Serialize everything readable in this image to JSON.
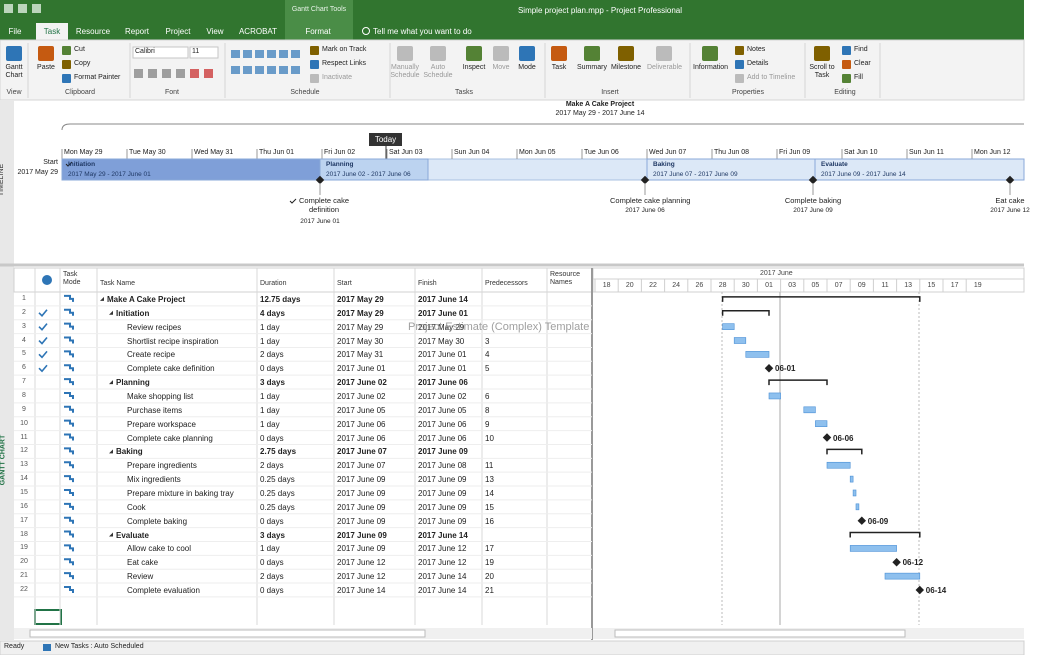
{
  "title_bar": {
    "context_tab": "Gantt Chart Tools",
    "title": "Simple project plan.mpp - Project Professional"
  },
  "tabs": [
    "File",
    "Task",
    "Resource",
    "Report",
    "Project",
    "View",
    "ACROBAT",
    "Format"
  ],
  "tell_me": "Tell me what you want to do",
  "ribbon": [
    {
      "group": "View",
      "buttons": [
        "Gantt Chart"
      ]
    },
    {
      "group": "Clipboard",
      "buttons": [
        "Paste",
        "Cut",
        "Copy",
        "Format Painter"
      ]
    },
    {
      "group": "Font",
      "buttons": [
        "Calibri",
        "11"
      ]
    },
    {
      "group": "Schedule",
      "buttons": [
        "Mark on Track",
        "Respect Links",
        "Inactivate"
      ]
    },
    {
      "group": "Tasks",
      "buttons": [
        "Manually Schedule",
        "Auto Schedule",
        "Inspect",
        "Move",
        "Mode"
      ]
    },
    {
      "group": "Insert",
      "buttons": [
        "Task",
        "Summary",
        "Milestone",
        "Deliverable"
      ]
    },
    {
      "group": "Properties",
      "buttons": [
        "Information",
        "Notes",
        "Details",
        "Add to Timeline"
      ]
    },
    {
      "group": "Editing",
      "buttons": [
        "Scroll to Task",
        "Find",
        "Clear",
        "Fill"
      ]
    }
  ],
  "side_labels": {
    "timeline": "TIMELINE",
    "gantt": "GANTT CHART"
  },
  "timeline": {
    "title": "Make A Cake Project",
    "range": "2017 May 29 - 2017 June 14",
    "start_label": "Start",
    "start_date": "2017 May 29",
    "today": "Today",
    "dates": [
      "Mon May 29",
      "Tue May 30",
      "Wed May 31",
      "Thu Jun 01",
      "Fri Jun 02",
      "Sat Jun 03",
      "Sun Jun 04",
      "Mon Jun 05",
      "Tue Jun 06",
      "Wed Jun 07",
      "Thu Jun 08",
      "Fri Jun 09",
      "Sat Jun 10",
      "Sun Jun 11",
      "Mon Jun 12"
    ],
    "bars": [
      {
        "name": "Initiation",
        "range": "2017 May 29 - 2017 June 01"
      },
      {
        "name": "Planning",
        "range": "2017 June 02 - 2017 June 06"
      },
      {
        "name": "Baking",
        "range": "2017 June 07 - 2017 June 09"
      },
      {
        "name": "Evaluate",
        "range": "2017 June 09 - 2017 June 14"
      }
    ],
    "milestones": [
      {
        "name": "Complete cake definition",
        "date": "2017 June 01"
      },
      {
        "name": "Complete cake planning",
        "date": "2017 June 06"
      },
      {
        "name": "Complete baking",
        "date": "2017 June 09"
      },
      {
        "name": "Eat cake",
        "date": "2017 June 12"
      }
    ]
  },
  "table": {
    "columns": [
      "Task Mode",
      "Task Name",
      "Duration",
      "Start",
      "Finish",
      "Predecessors",
      "Resource Names"
    ],
    "rows": [
      {
        "id": 1,
        "level": 0,
        "name": "Make A Cake Project",
        "duration": "12.75 days",
        "start": "2017 May 29",
        "finish": "2017 June 14"
      },
      {
        "id": 2,
        "level": 1,
        "complete": true,
        "name": "Initiation",
        "duration": "4 days",
        "start": "2017 May 29",
        "finish": "2017 June 01"
      },
      {
        "id": 3,
        "level": 2,
        "complete": true,
        "name": "Review recipes",
        "duration": "1 day",
        "start": "2017 May 29",
        "finish": "2017 May 29"
      },
      {
        "id": 4,
        "level": 2,
        "complete": true,
        "name": "Shortlist recipe inspiration",
        "duration": "1 day",
        "start": "2017 May 30",
        "finish": "2017 May 30",
        "predecessors": "3"
      },
      {
        "id": 5,
        "level": 2,
        "complete": true,
        "name": "Create recipe",
        "duration": "2 days",
        "start": "2017 May 31",
        "finish": "2017 June 01",
        "predecessors": "4"
      },
      {
        "id": 6,
        "level": 2,
        "complete": true,
        "name": "Complete cake definition",
        "duration": "0 days",
        "start": "2017 June 01",
        "finish": "2017 June 01",
        "predecessors": "5",
        "bar_label": "06-01"
      },
      {
        "id": 7,
        "level": 1,
        "name": "Planning",
        "duration": "3 days",
        "start": "2017 June 02",
        "finish": "2017 June 06"
      },
      {
        "id": 8,
        "level": 2,
        "name": "Make shopping list",
        "duration": "1 day",
        "start": "2017 June 02",
        "finish": "2017 June 02",
        "predecessors": "6"
      },
      {
        "id": 9,
        "level": 2,
        "name": "Purchase items",
        "duration": "1 day",
        "start": "2017 June 05",
        "finish": "2017 June 05",
        "predecessors": "8"
      },
      {
        "id": 10,
        "level": 2,
        "name": "Prepare workspace",
        "duration": "1 day",
        "start": "2017 June 06",
        "finish": "2017 June 06",
        "predecessors": "9"
      },
      {
        "id": 11,
        "level": 2,
        "name": "Complete cake planning",
        "duration": "0 days",
        "start": "2017 June 06",
        "finish": "2017 June 06",
        "predecessors": "10",
        "bar_label": "06-06"
      },
      {
        "id": 12,
        "level": 1,
        "name": "Baking",
        "duration": "2.75 days",
        "start": "2017 June 07",
        "finish": "2017 June 09"
      },
      {
        "id": 13,
        "level": 2,
        "name": "Prepare ingredients",
        "duration": "2 days",
        "start": "2017 June 07",
        "finish": "2017 June 08",
        "predecessors": "11"
      },
      {
        "id": 14,
        "level": 2,
        "name": "Mix ingredients",
        "duration": "0.25 days",
        "start": "2017 June 09",
        "finish": "2017 June 09",
        "predecessors": "13"
      },
      {
        "id": 15,
        "level": 2,
        "name": "Prepare mixture in baking tray",
        "duration": "0.25 days",
        "start": "2017 June 09",
        "finish": "2017 June 09",
        "predecessors": "14"
      },
      {
        "id": 16,
        "level": 2,
        "name": "Cook",
        "duration": "0.25 days",
        "start": "2017 June 09",
        "finish": "2017 June 09",
        "predecessors": "15"
      },
      {
        "id": 17,
        "level": 2,
        "name": "Complete baking",
        "duration": "0 days",
        "start": "2017 June 09",
        "finish": "2017 June 09",
        "predecessors": "16",
        "bar_label": "06-09"
      },
      {
        "id": 18,
        "level": 1,
        "name": "Evaluate",
        "duration": "3 days",
        "start": "2017 June 09",
        "finish": "2017 June 14"
      },
      {
        "id": 19,
        "level": 2,
        "name": "Allow cake to cool",
        "duration": "1 day",
        "start": "2017 June 09",
        "finish": "2017 June 12",
        "predecessors": "17"
      },
      {
        "id": 20,
        "level": 2,
        "name": "Eat cake",
        "duration": "0 days",
        "start": "2017 June 12",
        "finish": "2017 June 12",
        "predecessors": "19",
        "bar_label": "06-12"
      },
      {
        "id": 21,
        "level": 2,
        "name": "Review",
        "duration": "2 days",
        "start": "2017 June 12",
        "finish": "2017 June 14",
        "predecessors": "20"
      },
      {
        "id": 22,
        "level": 2,
        "name": "Complete evaluation",
        "duration": "0 days",
        "start": "2017 June 14",
        "finish": "2017 June 14",
        "predecessors": "21",
        "bar_label": "06-14"
      }
    ]
  },
  "gantt": {
    "month": "2017 June",
    "days": [
      "18",
      "20",
      "22",
      "24",
      "26",
      "28",
      "30",
      "01",
      "03",
      "05",
      "07",
      "09",
      "11",
      "13",
      "15",
      "17",
      "19"
    ]
  },
  "watermark": "Project Estimate (Complex) Template",
  "status_bar": {
    "state": "Ready",
    "mode": "New Tasks : Auto Scheduled"
  }
}
